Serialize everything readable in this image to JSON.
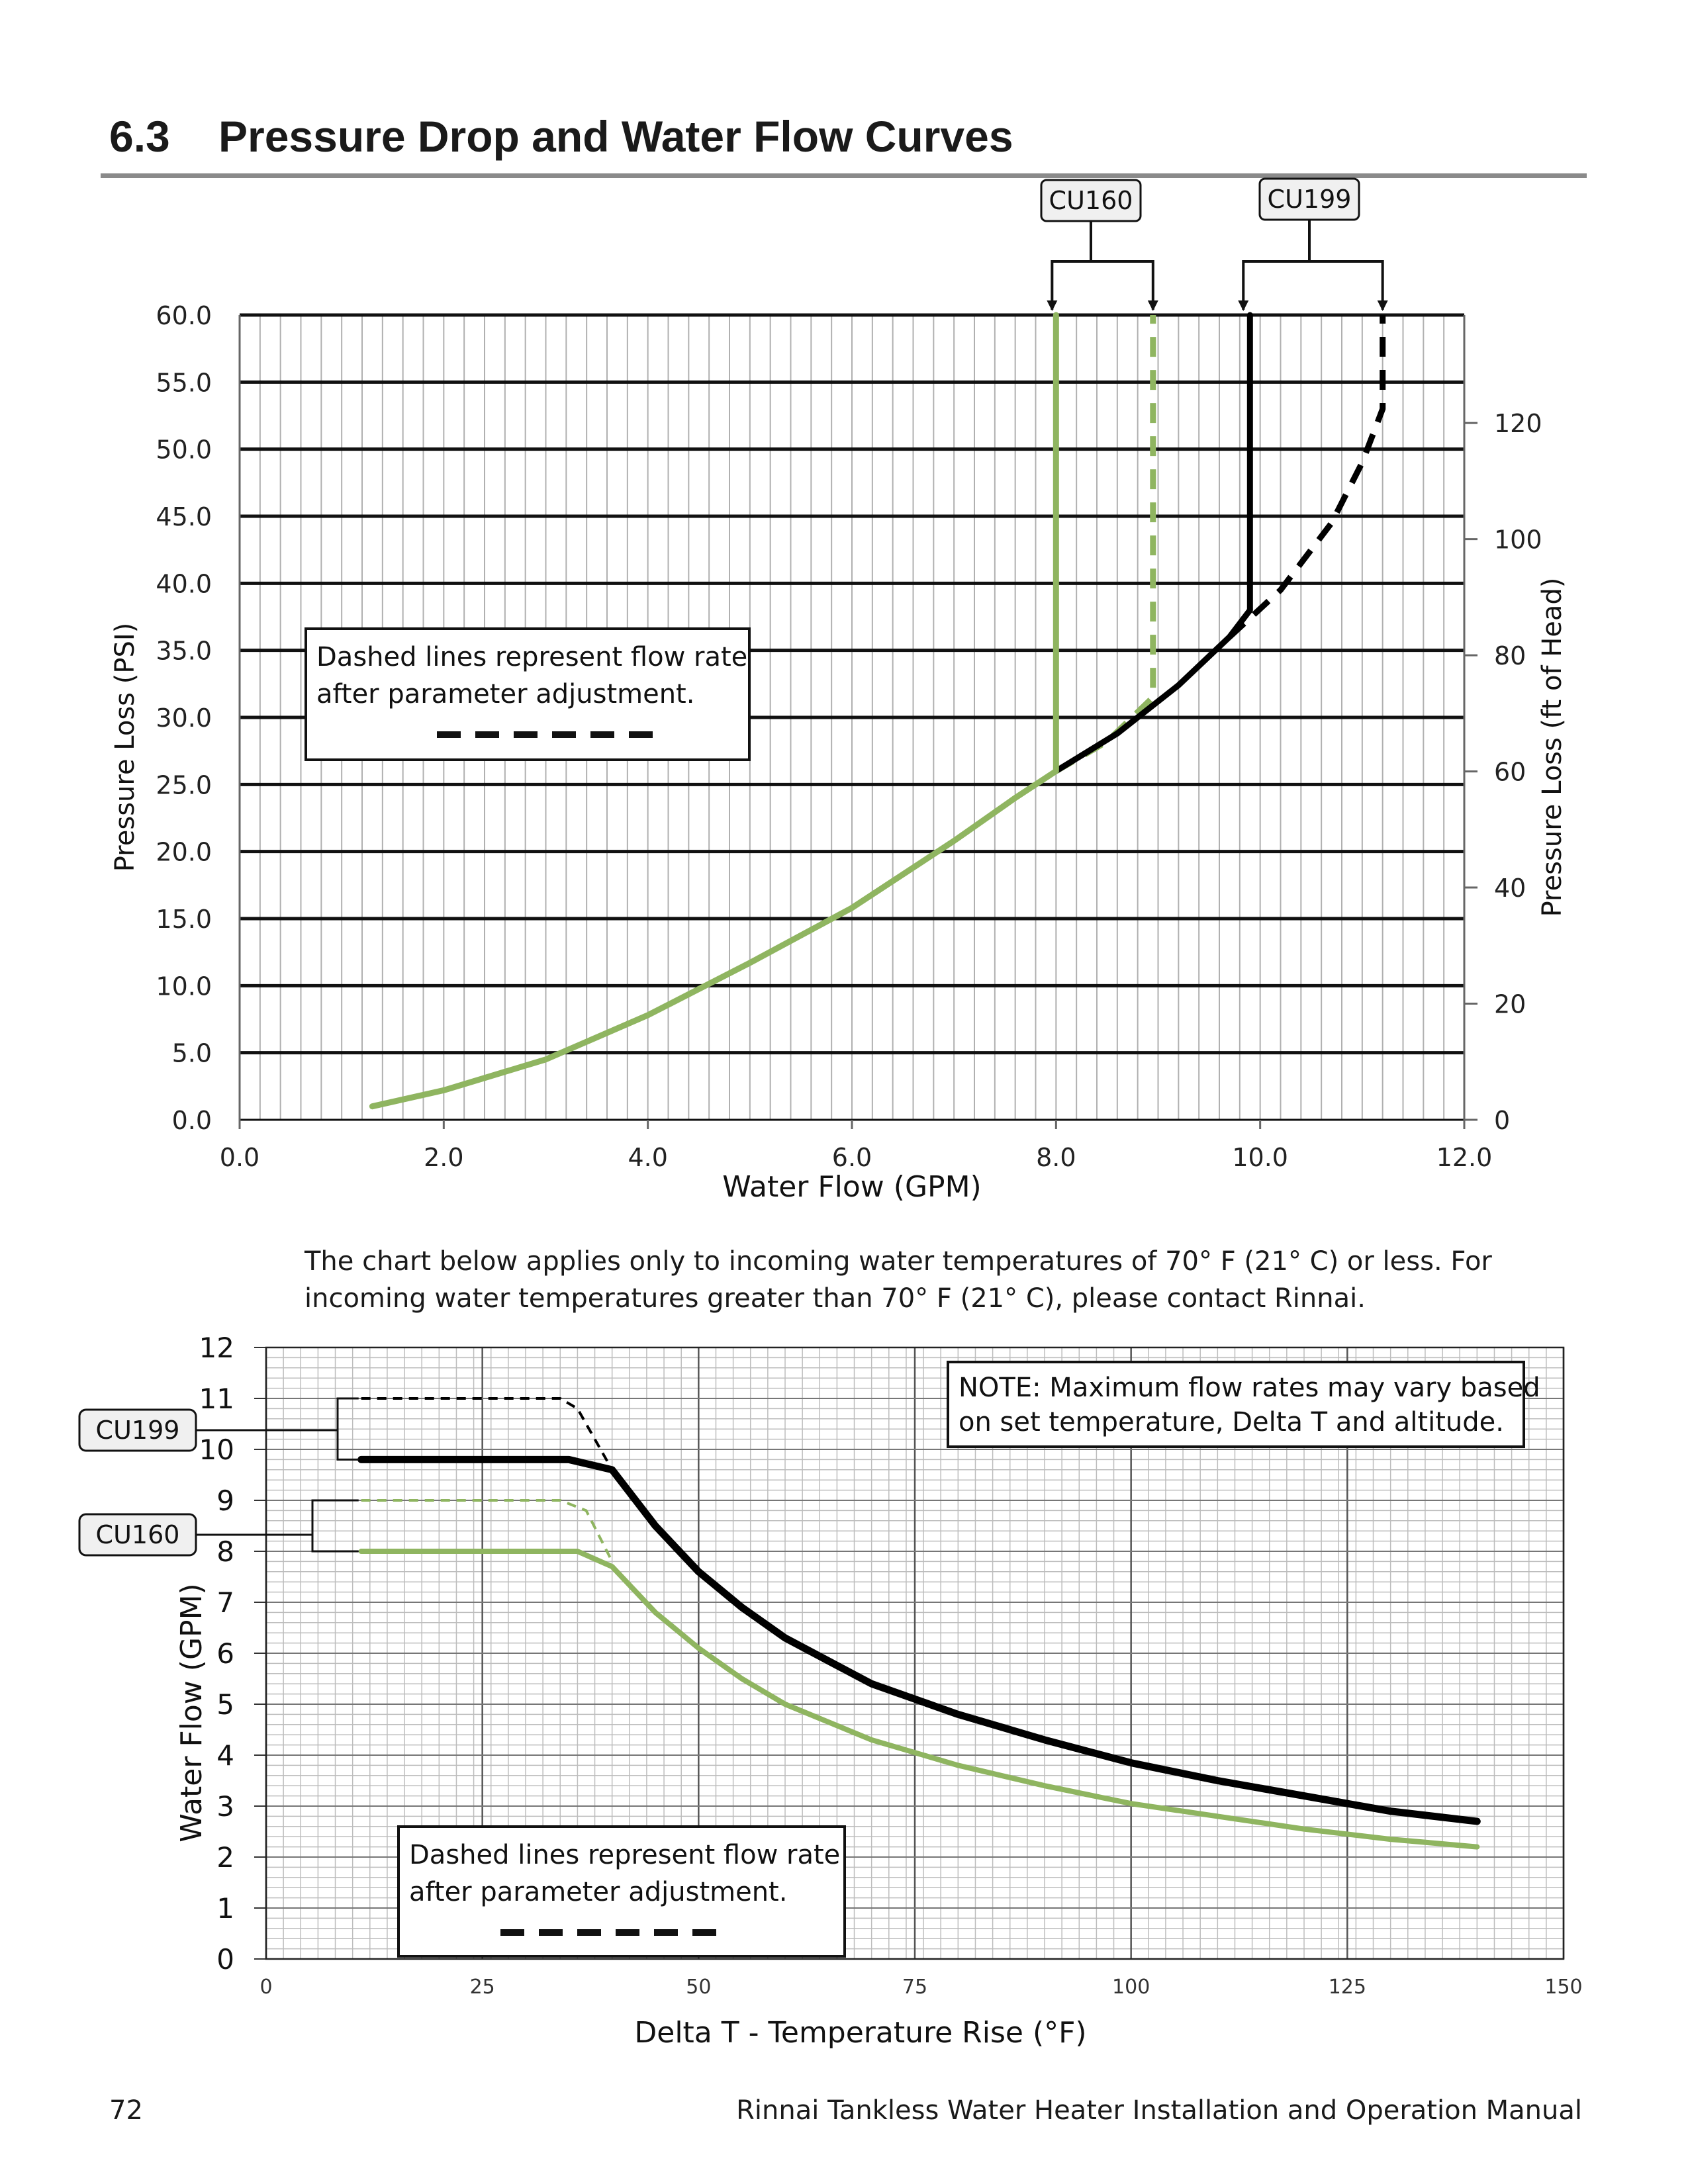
{
  "heading": {
    "number": "6.3",
    "title": "Pressure Drop and Water Flow Curves"
  },
  "intro_note": "The chart below applies only to incoming water temperatures of 70° F (21° C) or less.  For incoming water temperatures greater than 70° F (21° C), please contact Rinnai.",
  "footer": {
    "page_number": "72",
    "manual_title": "Rinnai Tankless Water Heater Installation and Operation Manual"
  },
  "colors": {
    "cu160": "#8fb560",
    "cu199": "#000000",
    "grid_major": "#111111",
    "grid_minor": "#b0b0b0"
  },
  "chart_data": [
    {
      "type": "line",
      "xlabel": "Water Flow (GPM)",
      "ylabel": "Pressure Loss (PSI)",
      "y2label": "Pressure Loss (ft of Head)",
      "xlim": [
        0,
        12
      ],
      "ylim": [
        0,
        60
      ],
      "y2lim": [
        0,
        138.6
      ],
      "x_ticks": [
        "0.0",
        "2.0",
        "4.0",
        "6.0",
        "8.0",
        "10.0",
        "12.0"
      ],
      "y_ticks": [
        "0.0",
        "5.0",
        "10.0",
        "15.0",
        "20.0",
        "25.0",
        "30.0",
        "35.0",
        "40.0",
        "45.0",
        "50.0",
        "55.0",
        "60.0"
      ],
      "y2_ticks": [
        0,
        20,
        40,
        60,
        80,
        100,
        120
      ],
      "grid": true,
      "callouts": [
        "CU160",
        "CU199"
      ],
      "legend_note": [
        "Dashed lines represent flow rate",
        "after parameter adjustment."
      ],
      "series": [
        {
          "name": "CU160",
          "style": "solid",
          "color": "#8fb560",
          "x": [
            1.3,
            2.0,
            3.0,
            4.0,
            5.0,
            6.0,
            7.0,
            7.6,
            8.0,
            8.0,
            8.0
          ],
          "y": [
            1.0,
            2.2,
            4.5,
            7.8,
            11.7,
            15.8,
            20.8,
            24.0,
            26.0,
            35.0,
            60.0
          ]
        },
        {
          "name": "CU160",
          "style": "dashed",
          "color": "#8fb560",
          "x": [
            8.0,
            8.5,
            8.95,
            8.95,
            8.95
          ],
          "y": [
            26.0,
            28.2,
            31.5,
            45.0,
            60.0
          ]
        },
        {
          "name": "CU199",
          "style": "solid",
          "color": "#000000",
          "x": [
            8.0,
            8.6,
            9.2,
            9.7,
            9.9,
            9.9,
            9.9
          ],
          "y": [
            26.0,
            28.8,
            32.4,
            36.0,
            38.0,
            45.0,
            60.0
          ]
        },
        {
          "name": "CU199",
          "style": "dashed",
          "color": "#000000",
          "x": [
            9.7,
            10.2,
            10.7,
            11.0,
            11.2,
            11.2,
            11.2
          ],
          "y": [
            36.0,
            39.5,
            44.5,
            49.0,
            53.0,
            57.0,
            60.0
          ]
        }
      ]
    },
    {
      "type": "line",
      "xlabel": "Delta T - Temperature Rise (°F)",
      "ylabel": "Water Flow (GPM)",
      "xlim": [
        0,
        150
      ],
      "ylim": [
        0,
        12
      ],
      "x_ticks": [
        "0",
        "25",
        "50",
        "75",
        "100",
        "125",
        "150"
      ],
      "y_ticks": [
        "0",
        "1",
        "2",
        "3",
        "4",
        "5",
        "6",
        "7",
        "8",
        "9",
        "10",
        "11",
        "12"
      ],
      "grid": true,
      "callouts": [
        "CU199",
        "CU160"
      ],
      "annotation": [
        "NOTE: Maximum flow rates may vary based",
        "on set temperature, Delta T and altitude."
      ],
      "legend_note": [
        "Dashed lines represent flow rate",
        "after parameter adjustment."
      ],
      "series": [
        {
          "name": "CU199",
          "style": "solid",
          "color": "#000000",
          "x": [
            11,
            35,
            40,
            45,
            50,
            55,
            60,
            70,
            80,
            90,
            100,
            110,
            120,
            130,
            140
          ],
          "y": [
            9.8,
            9.8,
            9.6,
            8.5,
            7.6,
            6.9,
            6.3,
            5.4,
            4.8,
            4.3,
            3.85,
            3.5,
            3.2,
            2.9,
            2.7
          ]
        },
        {
          "name": "CU199",
          "style": "dashed",
          "color": "#000000",
          "x": [
            11,
            34,
            36,
            40
          ],
          "y": [
            11.0,
            11.0,
            10.8,
            9.6
          ]
        },
        {
          "name": "CU160",
          "style": "solid",
          "color": "#8fb560",
          "x": [
            11,
            34,
            36,
            40,
            45,
            50,
            55,
            60,
            70,
            80,
            90,
            100,
            110,
            120,
            130,
            140
          ],
          "y": [
            8.0,
            8.0,
            8.0,
            7.7,
            6.8,
            6.1,
            5.5,
            5.0,
            4.3,
            3.8,
            3.4,
            3.05,
            2.8,
            2.55,
            2.35,
            2.2
          ]
        },
        {
          "name": "CU160",
          "style": "dashed",
          "color": "#8fb560",
          "x": [
            11,
            34,
            37,
            40
          ],
          "y": [
            9.0,
            9.0,
            8.8,
            7.8
          ]
        }
      ]
    }
  ]
}
